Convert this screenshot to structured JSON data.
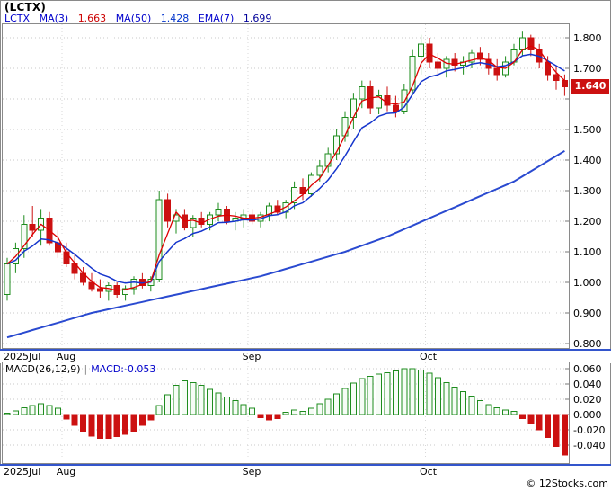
{
  "title": "(LCTX)",
  "legend": {
    "symbol": "LCTX",
    "ma3_label": "MA(3)",
    "ma3_value": "1.663",
    "ma50_label": "MA(50)",
    "ma50_value": "1.428",
    "ema7_label": "EMA(7)",
    "ema7_value": "1.699"
  },
  "price_badge": "1.640",
  "macd_legend": {
    "label": "MACD(26,12,9)",
    "divider": "|",
    "value": "MACD:-0.053"
  },
  "copyright": "© 12Stocks.com",
  "colors": {
    "up_green": "#1e8c1e",
    "up_fill": "#f6fcf6",
    "down_red": "#cc1111",
    "ma3_red": "#dd0000",
    "ema7_blue": "#1535cc",
    "ma50_blue": "#2a4ad0",
    "axis_blue": "#3355cc",
    "badge_bg": "#cc1111",
    "badge_text": "#ffffff",
    "grid": "#c8c8c8",
    "border": "#8a8a8a"
  },
  "chart_data": [
    {
      "type": "candlestick",
      "symbol": "LCTX",
      "title": "(LCTX)",
      "ylim": [
        0.788,
        1.847
      ],
      "yticks": [
        "1.800",
        "1.700",
        "1.500",
        "1.400",
        "1.300",
        "1.200",
        "1.100",
        "1.000",
        "0.900",
        "0.800"
      ],
      "last_price": 1.64,
      "months": [
        {
          "label": "2025Jul",
          "index": 0
        },
        {
          "label": "Aug",
          "index": 7
        },
        {
          "label": "Sep",
          "index": 29
        },
        {
          "label": "Oct",
          "index": 50
        }
      ],
      "series": [
        {
          "name": "MA(3)",
          "last": 1.663,
          "color": "red"
        },
        {
          "name": "MA(50)",
          "last": 1.428,
          "color": "blue"
        },
        {
          "name": "EMA(7)",
          "last": 1.699,
          "color": "blue"
        }
      ],
      "ma50_anchors": [
        [
          0,
          0.82
        ],
        [
          5,
          0.86
        ],
        [
          10,
          0.9
        ],
        [
          15,
          0.93
        ],
        [
          20,
          0.96
        ],
        [
          25,
          0.99
        ],
        [
          30,
          1.02
        ],
        [
          35,
          1.06
        ],
        [
          40,
          1.1
        ],
        [
          45,
          1.15
        ],
        [
          50,
          1.21
        ],
        [
          55,
          1.27
        ],
        [
          60,
          1.33
        ],
        [
          66,
          1.43
        ]
      ],
      "candles": [
        [
          0.96,
          1.08,
          0.94,
          1.06
        ],
        [
          1.06,
          1.13,
          1.03,
          1.11
        ],
        [
          1.11,
          1.22,
          1.08,
          1.19
        ],
        [
          1.19,
          1.25,
          1.15,
          1.17
        ],
        [
          1.17,
          1.24,
          1.12,
          1.21
        ],
        [
          1.21,
          1.23,
          1.12,
          1.13
        ],
        [
          1.13,
          1.17,
          1.08,
          1.1
        ],
        [
          1.1,
          1.13,
          1.05,
          1.06
        ],
        [
          1.06,
          1.09,
          1.01,
          1.03
        ],
        [
          1.03,
          1.05,
          0.99,
          1.0
        ],
        [
          1.0,
          1.03,
          0.97,
          0.98
        ],
        [
          0.98,
          1.01,
          0.95,
          0.97
        ],
        [
          0.97,
          1.0,
          0.94,
          0.99
        ],
        [
          0.99,
          1.0,
          0.95,
          0.96
        ],
        [
          0.96,
          0.99,
          0.94,
          0.98
        ],
        [
          0.98,
          1.02,
          0.96,
          1.01
        ],
        [
          1.01,
          1.03,
          0.98,
          0.99
        ],
        [
          0.99,
          1.02,
          0.97,
          1.01
        ],
        [
          1.01,
          1.3,
          1.0,
          1.27
        ],
        [
          1.27,
          1.29,
          1.18,
          1.2
        ],
        [
          1.2,
          1.24,
          1.16,
          1.22
        ],
        [
          1.22,
          1.24,
          1.17,
          1.18
        ],
        [
          1.18,
          1.22,
          1.15,
          1.21
        ],
        [
          1.21,
          1.23,
          1.18,
          1.19
        ],
        [
          1.19,
          1.23,
          1.17,
          1.22
        ],
        [
          1.22,
          1.26,
          1.2,
          1.24
        ],
        [
          1.24,
          1.25,
          1.19,
          1.2
        ],
        [
          1.2,
          1.23,
          1.17,
          1.21
        ],
        [
          1.21,
          1.24,
          1.18,
          1.22
        ],
        [
          1.22,
          1.24,
          1.19,
          1.2
        ],
        [
          1.2,
          1.23,
          1.18,
          1.22
        ],
        [
          1.22,
          1.26,
          1.2,
          1.25
        ],
        [
          1.25,
          1.27,
          1.22,
          1.23
        ],
        [
          1.23,
          1.27,
          1.21,
          1.26
        ],
        [
          1.26,
          1.33,
          1.24,
          1.31
        ],
        [
          1.31,
          1.34,
          1.27,
          1.29
        ],
        [
          1.29,
          1.36,
          1.28,
          1.35
        ],
        [
          1.35,
          1.4,
          1.33,
          1.38
        ],
        [
          1.38,
          1.44,
          1.36,
          1.42
        ],
        [
          1.42,
          1.5,
          1.4,
          1.48
        ],
        [
          1.48,
          1.56,
          1.46,
          1.54
        ],
        [
          1.54,
          1.62,
          1.5,
          1.6
        ],
        [
          1.6,
          1.66,
          1.57,
          1.64
        ],
        [
          1.64,
          1.66,
          1.55,
          1.57
        ],
        [
          1.57,
          1.63,
          1.55,
          1.61
        ],
        [
          1.61,
          1.64,
          1.56,
          1.58
        ],
        [
          1.58,
          1.61,
          1.54,
          1.56
        ],
        [
          1.56,
          1.65,
          1.55,
          1.63
        ],
        [
          1.63,
          1.76,
          1.62,
          1.74
        ],
        [
          1.74,
          1.81,
          1.68,
          1.78
        ],
        [
          1.78,
          1.8,
          1.7,
          1.72
        ],
        [
          1.72,
          1.75,
          1.68,
          1.7
        ],
        [
          1.7,
          1.74,
          1.67,
          1.73
        ],
        [
          1.73,
          1.75,
          1.69,
          1.71
        ],
        [
          1.71,
          1.74,
          1.68,
          1.72
        ],
        [
          1.72,
          1.76,
          1.7,
          1.75
        ],
        [
          1.75,
          1.77,
          1.71,
          1.73
        ],
        [
          1.73,
          1.75,
          1.68,
          1.7
        ],
        [
          1.7,
          1.73,
          1.66,
          1.68
        ],
        [
          1.68,
          1.74,
          1.67,
          1.72
        ],
        [
          1.72,
          1.78,
          1.71,
          1.76
        ],
        [
          1.76,
          1.82,
          1.74,
          1.8
        ],
        [
          1.8,
          1.81,
          1.74,
          1.76
        ],
        [
          1.76,
          1.78,
          1.7,
          1.72
        ],
        [
          1.72,
          1.74,
          1.66,
          1.68
        ],
        [
          1.68,
          1.71,
          1.63,
          1.66
        ],
        [
          1.66,
          1.68,
          1.61,
          1.64
        ]
      ]
    },
    {
      "type": "bar",
      "name": "MACD(26,12,9)",
      "last": -0.053,
      "ylim": [
        -0.065,
        0.069
      ],
      "yticks": [
        "0.060",
        "0.040",
        "0.020",
        "0.000",
        "-0.020",
        "-0.040"
      ],
      "values": [
        0.002,
        0.005,
        0.009,
        0.012,
        0.014,
        0.012,
        0.008,
        -0.006,
        -0.014,
        -0.022,
        -0.028,
        -0.031,
        -0.031,
        -0.029,
        -0.026,
        -0.022,
        -0.014,
        -0.007,
        0.012,
        0.026,
        0.038,
        0.044,
        0.042,
        0.038,
        0.033,
        0.028,
        0.023,
        0.018,
        0.013,
        0.008,
        -0.004,
        -0.007,
        -0.005,
        0.003,
        0.006,
        0.004,
        0.008,
        0.014,
        0.02,
        0.027,
        0.034,
        0.041,
        0.047,
        0.05,
        0.053,
        0.055,
        0.057,
        0.06,
        0.06,
        0.058,
        0.054,
        0.048,
        0.042,
        0.036,
        0.03,
        0.024,
        0.018,
        0.013,
        0.009,
        0.006,
        0.004,
        -0.005,
        -0.012,
        -0.02,
        -0.03,
        -0.042,
        -0.053
      ]
    }
  ]
}
